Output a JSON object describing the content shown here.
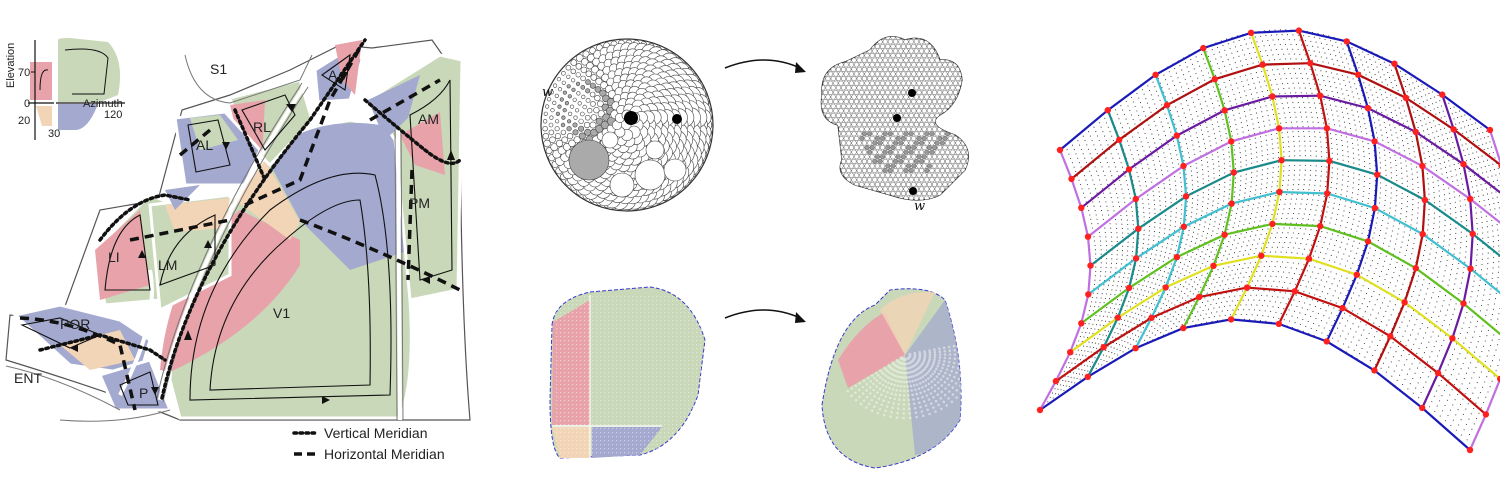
{
  "panel_a": {
    "inset": {
      "y_axis_label": "Elevation",
      "x_axis_label": "Azimuth",
      "ticks": {
        "y70": "70",
        "y0": "0",
        "y20": "20",
        "x30": "30",
        "x120": "120"
      }
    },
    "areas": {
      "S1": "S1",
      "A": "A",
      "RL": "RL",
      "AM": "AM",
      "AL": "AL",
      "PM": "PM",
      "LI": "LI",
      "LM": "LM",
      "V1": "V1",
      "POR": "POR",
      "ENT": "ENT",
      "P": "P"
    },
    "legend": {
      "vertical": "Vertical Meridian",
      "horizontal": "Horizontal Meridian"
    },
    "colors": {
      "red": "#e8a3aa",
      "green": "#c8d8b8",
      "blue": "#a4a9cf",
      "peach": "#f2d4b6"
    }
  },
  "panel_b": {
    "w_left": "w",
    "w_right": "w"
  },
  "panel_c": {
    "grid_colors": [
      "#1a1ab8",
      "#b01010",
      "#6a1aa0",
      "#c070e0",
      "#1a8a8a",
      "#40c0d0",
      "#60c020",
      "#e0e020",
      "#c01010"
    ],
    "node_color": "#ff2020"
  }
}
